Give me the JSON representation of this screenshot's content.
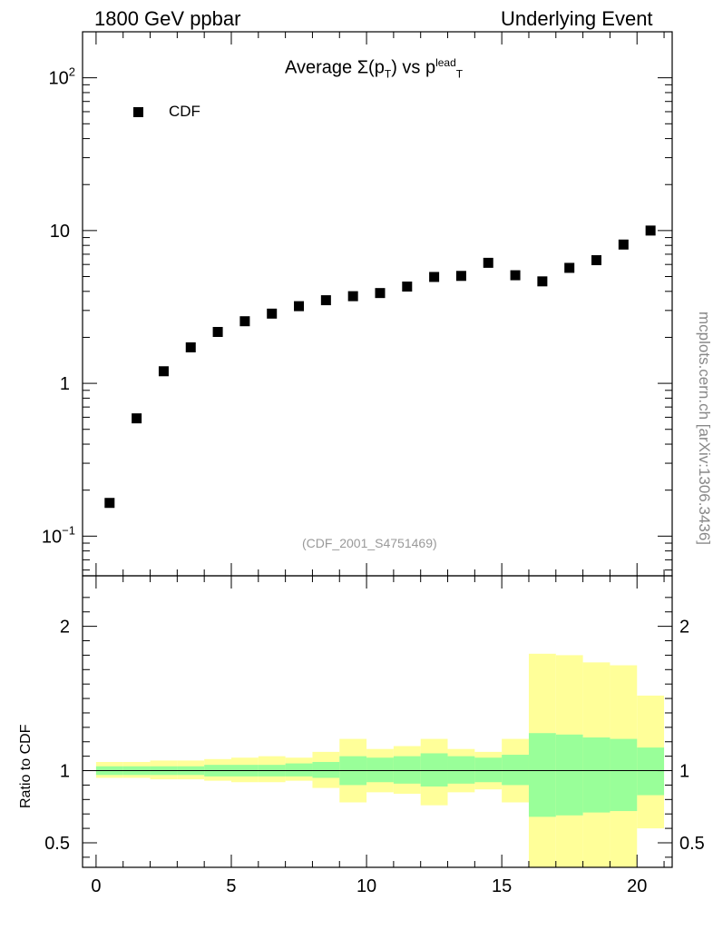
{
  "labels": {
    "top_left": "1800 GeV ppbar",
    "top_right": "Underlying Event",
    "watermark": "mcplots.cern.ch [arXiv:1306.3436]",
    "title_main": "Average Σ(p",
    "title_sub_t": "T",
    "title_mid": ") vs p",
    "title_sup": "lead",
    "title_sub_t2": "T",
    "legend": "CDF",
    "analysis_id": "(CDF_2001_S4751469)",
    "ratio_ylabel": "Ratio to CDF"
  },
  "chart_data": [
    {
      "type": "scatter",
      "title": "Average Σ(pT) vs pT lead",
      "xlabel": "",
      "ylabel": "",
      "xlim": [
        -0.5,
        21.3
      ],
      "ylim": [
        0.055,
        200
      ],
      "yscale": "log",
      "x_ticks": [
        0,
        5,
        10,
        15,
        20
      ],
      "y_ticks": [
        "10^-1",
        "1",
        "10",
        "10^2"
      ],
      "legend_position": "top-left",
      "series": [
        {
          "name": "CDF",
          "color": "#000000",
          "marker": "square",
          "x": [
            0.5,
            1.5,
            2.5,
            3.5,
            4.5,
            5.5,
            6.5,
            7.5,
            8.5,
            9.5,
            10.5,
            11.5,
            12.5,
            13.5,
            14.5,
            15.5,
            16.5,
            17.5,
            18.5,
            19.5,
            20.5
          ],
          "y": [
            0.165,
            0.59,
            1.2,
            1.72,
            2.17,
            2.55,
            2.86,
            3.2,
            3.5,
            3.72,
            3.9,
            4.3,
            4.97,
            5.05,
            6.15,
            5.1,
            4.65,
            5.7,
            6.4,
            8.1,
            10.0
          ]
        }
      ]
    },
    {
      "type": "area",
      "title": "",
      "xlabel": "",
      "ylabel": "Ratio to CDF",
      "xlim": [
        -0.5,
        21.3
      ],
      "ylim": [
        0.33,
        2.35
      ],
      "x_ticks": [
        0,
        5,
        10,
        15,
        20
      ],
      "y_ticks": [
        0.5,
        1,
        2
      ],
      "reference_line": 1,
      "bins": [
        [
          0,
          1
        ],
        [
          1,
          2
        ],
        [
          2,
          3
        ],
        [
          3,
          4
        ],
        [
          4,
          5
        ],
        [
          5,
          6
        ],
        [
          6,
          7
        ],
        [
          7,
          8
        ],
        [
          8,
          9
        ],
        [
          9,
          10
        ],
        [
          10,
          11
        ],
        [
          11,
          12
        ],
        [
          12,
          13
        ],
        [
          13,
          14
        ],
        [
          14,
          15
        ],
        [
          15,
          16
        ],
        [
          16,
          17
        ],
        [
          17,
          18
        ],
        [
          18,
          19
        ],
        [
          19,
          20
        ],
        [
          20,
          21
        ]
      ],
      "bands": [
        {
          "name": "stat",
          "color": "#99ff99",
          "lo": [
            0.97,
            0.97,
            0.97,
            0.97,
            0.96,
            0.96,
            0.96,
            0.96,
            0.95,
            0.9,
            0.92,
            0.91,
            0.89,
            0.91,
            0.92,
            0.9,
            0.68,
            0.69,
            0.71,
            0.72,
            0.83
          ],
          "hi": [
            1.03,
            1.03,
            1.03,
            1.03,
            1.04,
            1.04,
            1.04,
            1.05,
            1.06,
            1.1,
            1.09,
            1.1,
            1.12,
            1.1,
            1.09,
            1.11,
            1.26,
            1.25,
            1.23,
            1.22,
            1.16
          ]
        },
        {
          "name": "stat+sys",
          "color": "#ffff99",
          "lo": [
            0.95,
            0.95,
            0.94,
            0.94,
            0.93,
            0.92,
            0.92,
            0.93,
            0.88,
            0.78,
            0.85,
            0.84,
            0.76,
            0.85,
            0.87,
            0.78,
            0.3,
            0.3,
            0.3,
            0.3,
            0.6
          ],
          "hi": [
            1.06,
            1.06,
            1.07,
            1.07,
            1.08,
            1.09,
            1.1,
            1.09,
            1.13,
            1.22,
            1.15,
            1.17,
            1.22,
            1.15,
            1.13,
            1.22,
            1.81,
            1.8,
            1.75,
            1.73,
            1.52
          ]
        }
      ]
    }
  ]
}
